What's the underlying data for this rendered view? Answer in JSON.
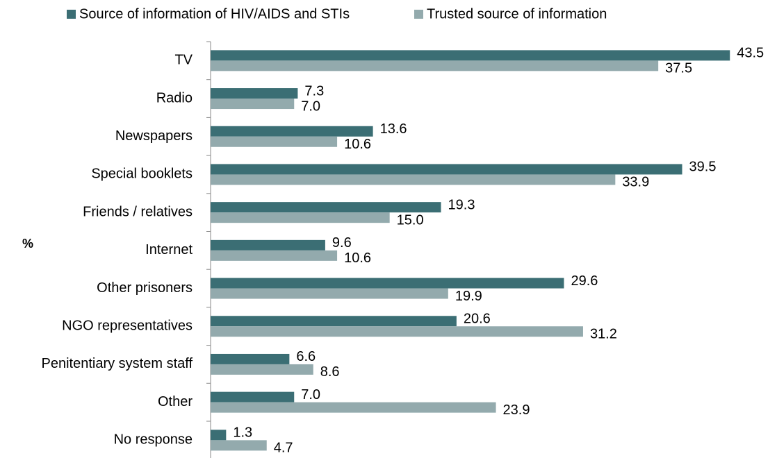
{
  "chart_data": {
    "type": "hbar",
    "xlabel": "%",
    "categories": [
      "TV",
      "Radio",
      "Newspapers",
      "Special booklets",
      "Friends / relatives",
      "Internet",
      "Other prisoners",
      "NGO representatives",
      "Penitentiary system staff",
      "Other",
      "No response"
    ],
    "series": [
      {
        "name": "Source of information of HIV/AIDS and STIs",
        "color": "#3b6e74",
        "values": [
          43.5,
          7.3,
          13.6,
          39.5,
          19.3,
          9.6,
          29.6,
          20.6,
          6.6,
          7,
          1.3
        ],
        "value_labels": [
          "43.5",
          "7.3",
          "13.6",
          "39.5",
          "19.3",
          "9.6",
          "29.6",
          "20.6",
          "6.6",
          "7.0",
          "1.3"
        ]
      },
      {
        "name": "Trusted source of information",
        "color": "#93aaad",
        "values": [
          37.5,
          7,
          10.6,
          33.9,
          15,
          10.6,
          19.9,
          31.2,
          8.6,
          23.9,
          4.7
        ],
        "value_labels": [
          "37.5",
          "7.0",
          "10.6",
          "33.9",
          "15.0",
          "10.6",
          "19.9",
          "31.2",
          "8.6",
          "23.9",
          "4.7"
        ]
      }
    ],
    "xlim": [
      0,
      45
    ],
    "legend": "top"
  }
}
